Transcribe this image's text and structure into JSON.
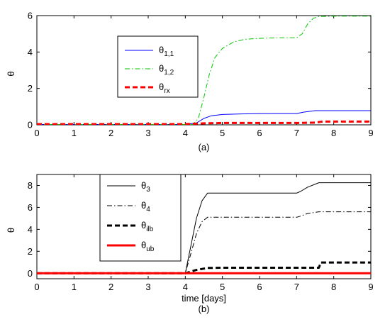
{
  "chart_data": [
    {
      "type": "line",
      "panel_label": "(a)",
      "ylabel": "θ",
      "xlabel": "",
      "xlim": [
        0,
        9
      ],
      "ylim": [
        0,
        6
      ],
      "xticks": [
        0,
        1,
        2,
        3,
        4,
        5,
        6,
        7,
        8,
        9
      ],
      "yticks": [
        0,
        2,
        4,
        6
      ],
      "grid": false,
      "legend_position": "upper-left-center",
      "series": [
        {
          "name": "θ1,1",
          "legend_main": "θ",
          "legend_sub": "1,1",
          "color": "#0000ff",
          "style": "solid",
          "x": [
            0,
            4.0,
            4.3,
            4.5,
            4.7,
            5.0,
            5.5,
            6.0,
            6.5,
            7.0,
            7.2,
            7.5,
            8.0,
            9.0
          ],
          "y": [
            0.02,
            0.02,
            0.1,
            0.35,
            0.5,
            0.57,
            0.6,
            0.61,
            0.62,
            0.62,
            0.7,
            0.78,
            0.78,
            0.78
          ]
        },
        {
          "name": "θ1,2",
          "legend_main": "θ",
          "legend_sub": "1,2",
          "color": "#00c800",
          "style": "dashdot",
          "x": [
            0,
            4.2,
            4.35,
            4.5,
            4.65,
            4.8,
            5.0,
            5.3,
            5.6,
            6.0,
            6.5,
            7.0,
            7.15,
            7.3,
            7.45,
            7.6,
            8.0,
            9.0
          ],
          "y": [
            0.02,
            0.02,
            0.35,
            1.5,
            2.8,
            3.7,
            4.2,
            4.55,
            4.7,
            4.75,
            4.78,
            4.78,
            5.0,
            5.55,
            5.85,
            5.95,
            5.97,
            5.97
          ]
        },
        {
          "name": "θrx",
          "legend_main": "θ",
          "legend_sub": "rx",
          "color": "#ff0000",
          "style": "dashed-thick",
          "x": [
            0,
            4.0,
            4.5,
            5.0,
            7.0,
            7.5,
            7.7,
            9.0
          ],
          "y": [
            0.04,
            0.04,
            0.08,
            0.1,
            0.1,
            0.12,
            0.18,
            0.18
          ]
        }
      ]
    },
    {
      "type": "line",
      "panel_label": "(b)",
      "ylabel": "θ",
      "xlabel": "time [days]",
      "xlim": [
        0,
        9
      ],
      "ylim": [
        -0.5,
        9
      ],
      "xticks": [
        0,
        1,
        2,
        3,
        4,
        5,
        6,
        7,
        8,
        9
      ],
      "yticks": [
        0,
        2,
        4,
        6,
        8
      ],
      "grid": false,
      "legend_position": "upper-left-center",
      "series": [
        {
          "name": "θ3",
          "legend_main": "θ",
          "legend_sub": "3",
          "color": "#000000",
          "style": "solid",
          "x": [
            0,
            4.0,
            4.15,
            4.3,
            4.45,
            4.6,
            5.0,
            6.0,
            7.0,
            7.1,
            7.3,
            7.6,
            8.0,
            9.0
          ],
          "y": [
            0,
            0,
            2.5,
            5.0,
            6.6,
            7.3,
            7.3,
            7.3,
            7.3,
            7.45,
            7.85,
            8.25,
            8.25,
            8.25
          ]
        },
        {
          "name": "θ4",
          "legend_main": "θ",
          "legend_sub": "4",
          "color": "#000000",
          "style": "dashdot",
          "x": [
            0,
            4.0,
            4.15,
            4.3,
            4.45,
            4.6,
            5.0,
            6.0,
            7.0,
            7.1,
            7.3,
            7.6,
            8.0,
            9.0
          ],
          "y": [
            0,
            0,
            1.8,
            3.6,
            4.7,
            5.1,
            5.1,
            5.1,
            5.1,
            5.2,
            5.45,
            5.6,
            5.6,
            5.6
          ]
        },
        {
          "name": "θilb",
          "legend_main": "θ",
          "legend_sub": "ilb",
          "color": "#000000",
          "style": "dashed-thick",
          "x": [
            0,
            4.0,
            4.3,
            4.6,
            5.0,
            6.0,
            7.0,
            7.6,
            7.65,
            9.0
          ],
          "y": [
            0,
            0,
            0.3,
            0.48,
            0.5,
            0.5,
            0.5,
            0.5,
            0.98,
            0.98
          ]
        },
        {
          "name": "θub",
          "legend_main": "θ",
          "legend_sub": "ub",
          "color": "#ff0000",
          "style": "solid-thick",
          "x": [
            0,
            9.0
          ],
          "y": [
            0,
            0
          ]
        }
      ]
    }
  ]
}
